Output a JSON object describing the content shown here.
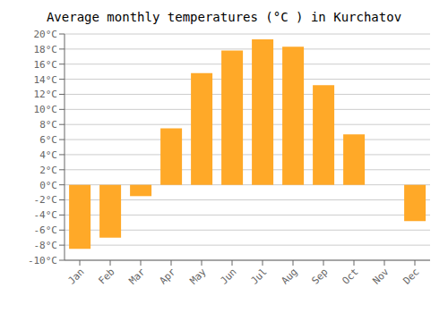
{
  "chart_data": {
    "type": "bar",
    "title": "Average monthly temperatures (°C ) in Kurchatov",
    "categories": [
      "Jan",
      "Feb",
      "Mar",
      "Apr",
      "May",
      "Jun",
      "Jul",
      "Aug",
      "Sep",
      "Oct",
      "Nov",
      "Dec"
    ],
    "values": [
      -8.5,
      -7.0,
      -1.5,
      7.5,
      14.8,
      17.8,
      19.3,
      18.3,
      13.2,
      6.7,
      0,
      -4.8
    ],
    "color": "#FFA928",
    "ylim": [
      -10,
      20
    ],
    "yticks": [
      {
        "value": -10,
        "label": "-10°C"
      },
      {
        "value": -8,
        "label": "-8°C"
      },
      {
        "value": -6,
        "label": "-6°C"
      },
      {
        "value": -4,
        "label": "-4°C"
      },
      {
        "value": -2,
        "label": "-2°C"
      },
      {
        "value": 0,
        "label": "0°C"
      },
      {
        "value": 2,
        "label": "2°C"
      },
      {
        "value": 4,
        "label": "4°C"
      },
      {
        "value": 6,
        "label": "6°C"
      },
      {
        "value": 8,
        "label": "8°C"
      },
      {
        "value": 10,
        "label": "10°C"
      },
      {
        "value": 12,
        "label": "12°C"
      },
      {
        "value": 14,
        "label": "14°C"
      },
      {
        "value": 16,
        "label": "16°C"
      },
      {
        "value": 18,
        "label": "18°C"
      },
      {
        "value": 20,
        "label": "20°C"
      }
    ],
    "grid": true
  }
}
